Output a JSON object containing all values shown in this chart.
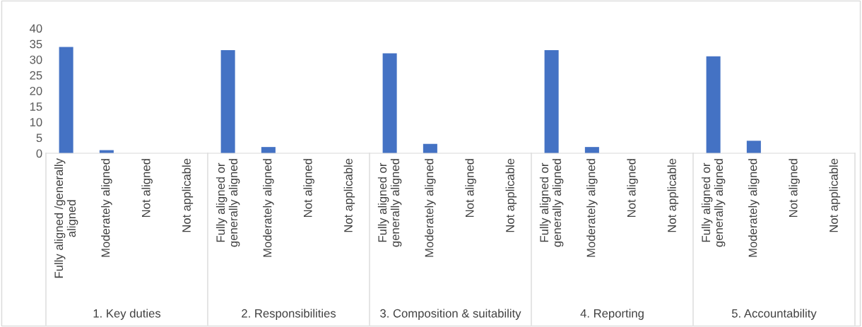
{
  "chart_data": {
    "type": "bar",
    "categories": [
      "Fully aligned /generally\naligned",
      "Moderately aligned",
      "Not aligned",
      "Not applicable",
      "Fully aligned or\ngenerally aligned",
      "Moderately aligned",
      "Not aligned",
      "Not applicable",
      "Fully aligned or\ngenerally aligned",
      "Moderately aligned",
      "Not aligned",
      "Not applicable",
      "Fully aligned or\ngenerally aligned",
      "Moderately aligned",
      "Not aligned",
      "Not applicable",
      "Fully aligned or\ngenerally aligned",
      "Moderately aligned",
      "Not aligned",
      "Not applicable"
    ],
    "values": [
      34,
      1,
      0,
      0,
      33,
      2,
      0,
      0,
      32,
      3,
      0,
      0,
      33,
      2,
      0,
      0,
      31,
      4,
      0,
      0
    ],
    "color": "#4472c4",
    "ylim": [
      0,
      40
    ],
    "yticks": [
      0,
      5,
      10,
      15,
      20,
      25,
      30,
      35,
      40
    ],
    "grid": false,
    "legend": false,
    "annotations": [
      "1. Key duties",
      "2. Responsibilities",
      "3. Composition & suitability",
      "4. Reporting",
      "5. Accountability"
    ]
  }
}
